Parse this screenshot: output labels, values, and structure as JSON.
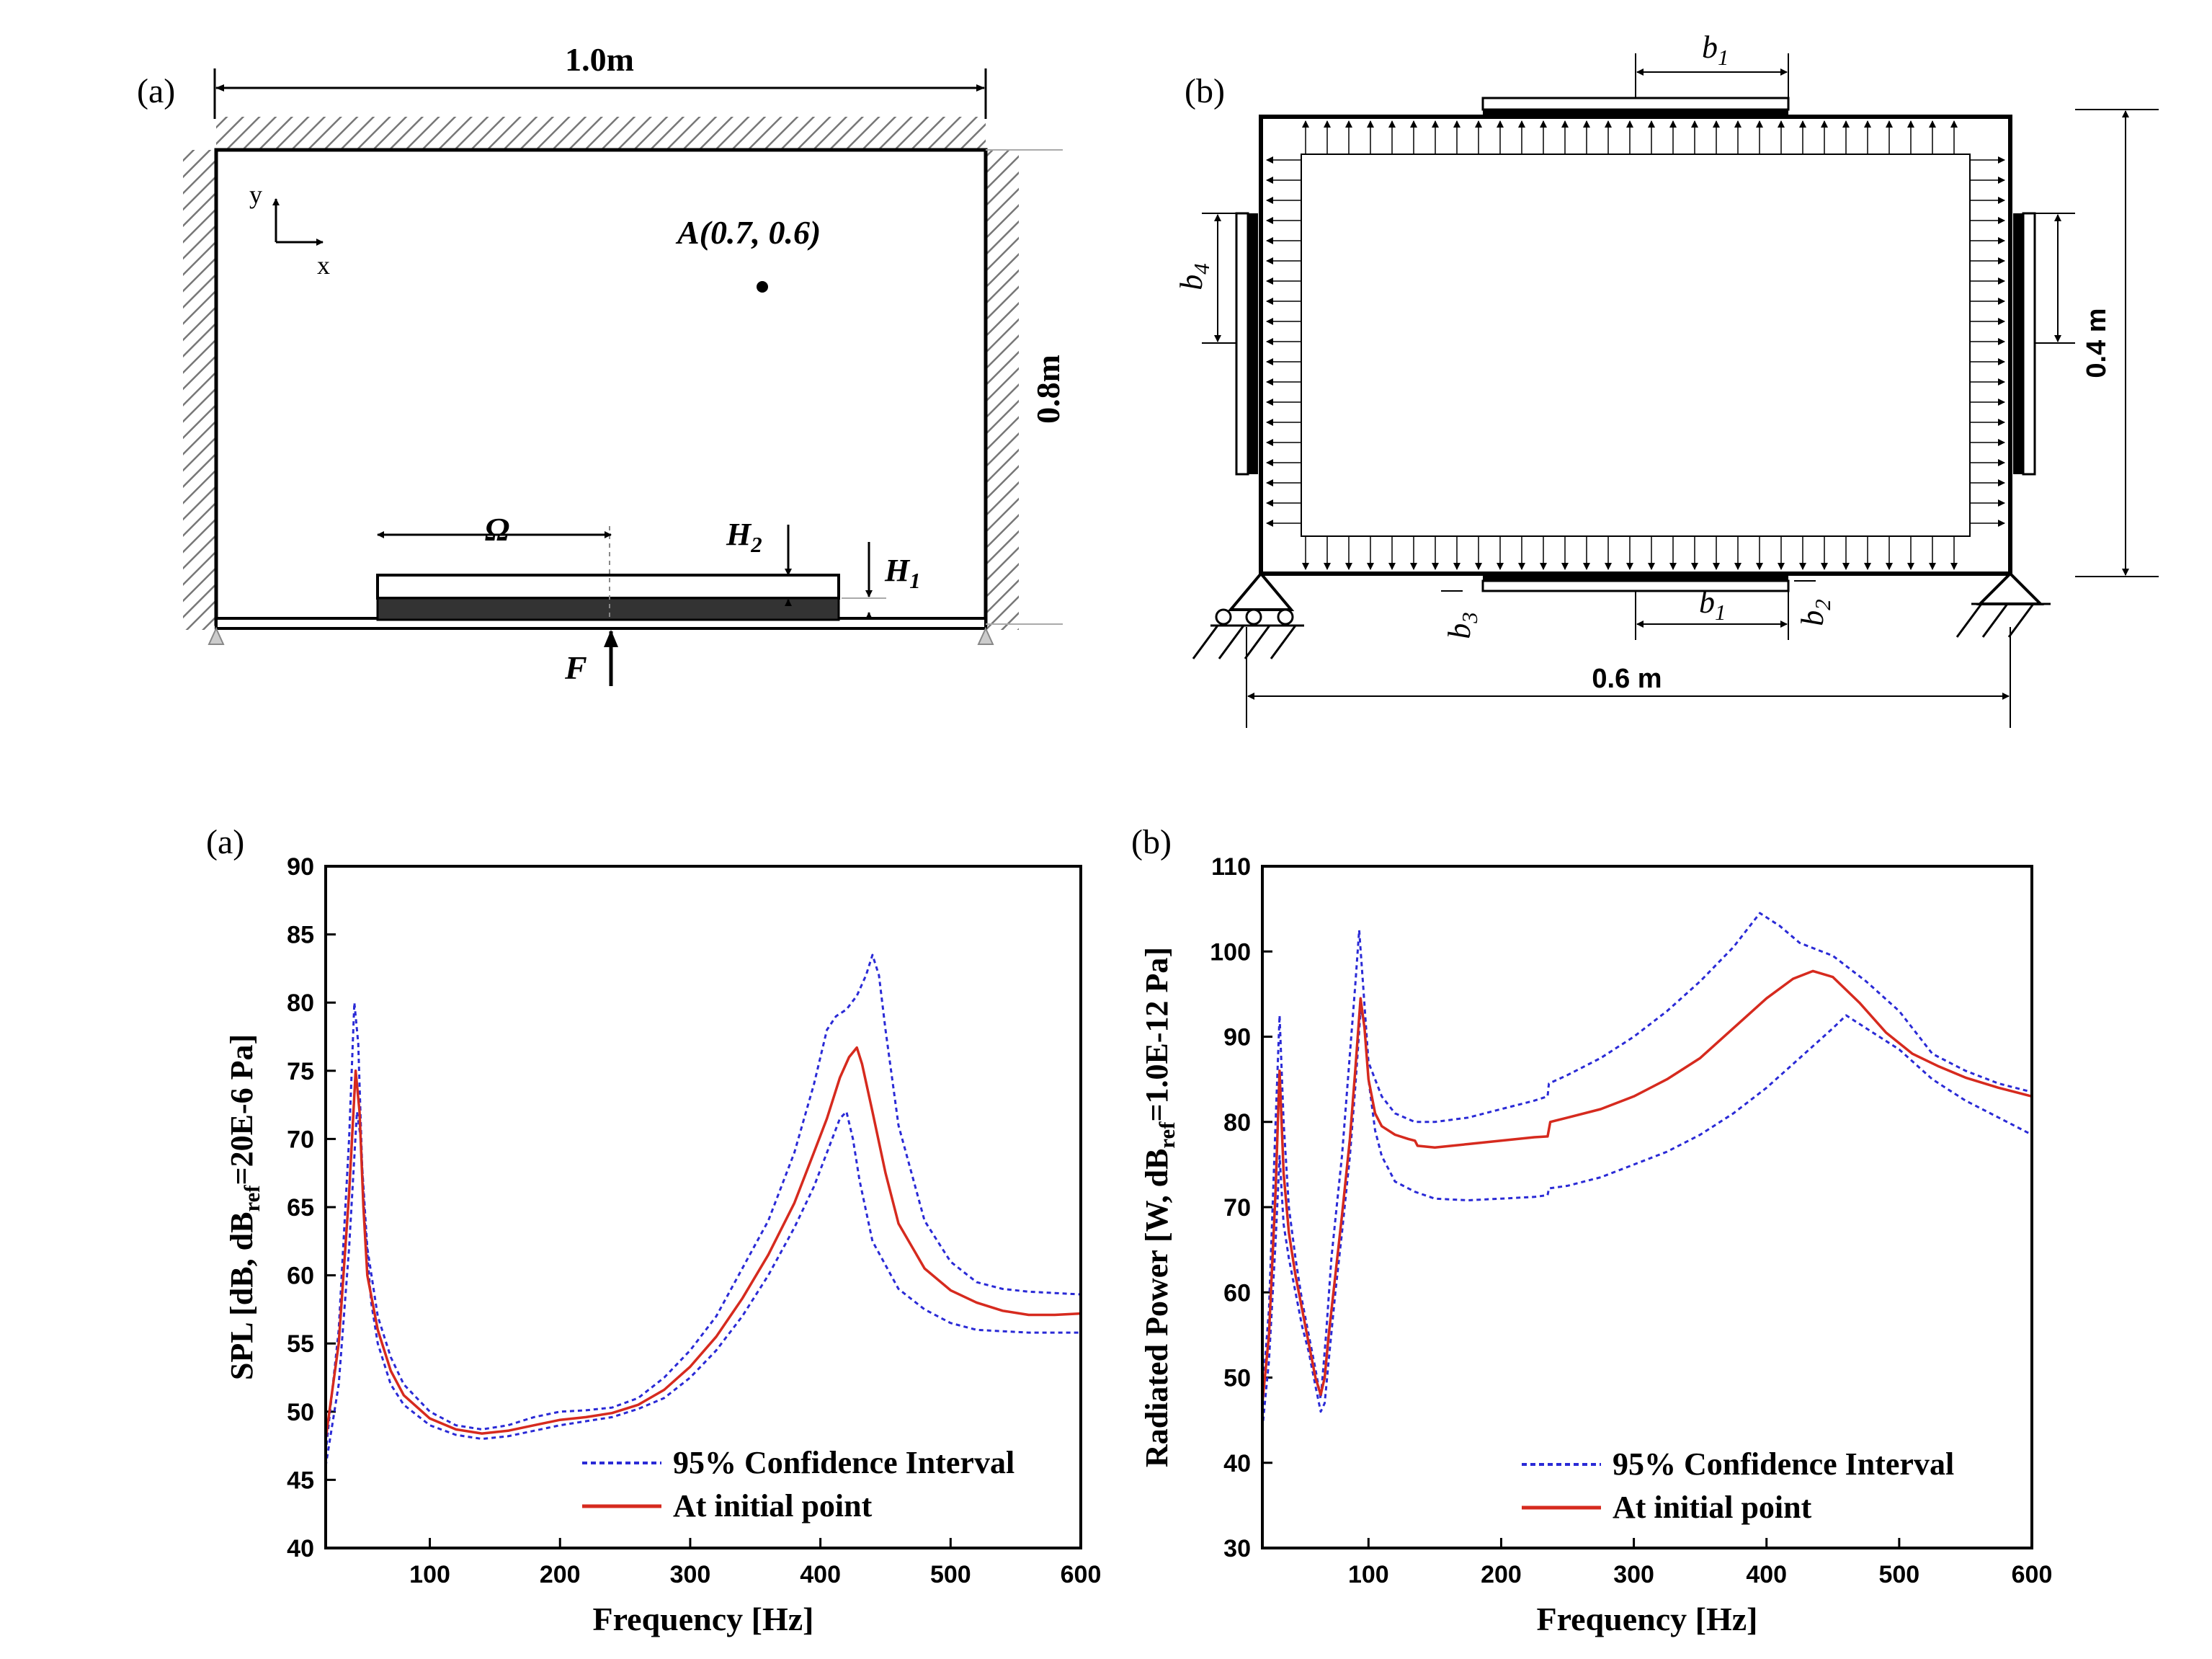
{
  "diagram_a": {
    "panel_label": "(a)",
    "width_label": "1.0m",
    "height_label": "0.8m",
    "axis_y": "y",
    "axis_x": "x",
    "point_label": "A(0.7, 0.6)",
    "omega_label": "Ω",
    "h2_label": "H2",
    "h1_label": "H1",
    "force_label": "F"
  },
  "diagram_b": {
    "panel_label": "(b)",
    "b1_top_label": "b1",
    "b4_label": "b4",
    "b3_label": "b3",
    "b1_bottom_label": "b1",
    "b2_label": "b2",
    "height_label": "0.4 m",
    "width_label": "0.6 m"
  },
  "colors": {
    "confidence": "#2a2ad6",
    "initial": "#d62a1e",
    "axes": "#000000"
  },
  "chart_data": [
    {
      "type": "line",
      "panel_label": "(a)",
      "xlabel": "Frequency [Hz]",
      "ylabel": "SPL [dB, dBref=20E-6 Pa]",
      "xlim": [
        20,
        600
      ],
      "ylim": [
        40,
        90
      ],
      "xticks": [
        100,
        200,
        300,
        400,
        500,
        600
      ],
      "yticks": [
        40,
        45,
        50,
        55,
        60,
        65,
        70,
        75,
        80,
        85,
        90
      ],
      "legend": [
        "95% Confidence Interval",
        "At initial point"
      ],
      "series": [
        {
          "name": "95% Confidence Interval",
          "style": "dotted",
          "x": [
            20,
            30,
            38,
            42,
            45,
            48,
            52,
            60,
            70,
            80,
            100,
            120,
            140,
            160,
            180,
            200,
            220,
            240,
            260,
            280,
            300,
            320,
            340,
            360,
            380,
            395,
            405,
            412,
            420,
            428,
            435,
            440,
            445,
            450,
            460,
            480,
            500,
            520,
            540,
            560,
            580,
            600
          ],
          "y": [
            47,
            56,
            70,
            80,
            77,
            68,
            62,
            57,
            54,
            52,
            50,
            49,
            48.7,
            49,
            49.6,
            50,
            50.1,
            50.3,
            51,
            52.5,
            54.5,
            57,
            60.5,
            64,
            69,
            74,
            78,
            79,
            79.5,
            80.5,
            82,
            83.5,
            82,
            78,
            71,
            64,
            61,
            59.5,
            59,
            58.8,
            58.7,
            58.6
          ]
        },
        {
          "name": "95% Confidence Interval",
          "style": "dotted",
          "x": [
            20,
            30,
            38,
            44,
            47,
            50,
            55,
            60,
            70,
            80,
            100,
            120,
            140,
            160,
            180,
            200,
            220,
            240,
            260,
            280,
            300,
            320,
            340,
            360,
            380,
            395,
            405,
            415,
            420,
            425,
            430,
            440,
            460,
            480,
            500,
            520,
            540,
            560,
            580,
            600
          ],
          "y": [
            46,
            52,
            62,
            72,
            70,
            64,
            58,
            55,
            52,
            50.5,
            49,
            48.3,
            48,
            48.2,
            48.6,
            49,
            49.3,
            49.6,
            50.2,
            51,
            52.5,
            54.5,
            57,
            60,
            63.5,
            66.5,
            69,
            71.5,
            72,
            70,
            67,
            62.5,
            59,
            57.5,
            56.5,
            56,
            55.9,
            55.8,
            55.8,
            55.8
          ]
        },
        {
          "name": "At initial point",
          "style": "solid",
          "x": [
            20,
            30,
            38,
            43,
            46,
            49,
            52,
            60,
            70,
            80,
            100,
            120,
            140,
            160,
            180,
            200,
            220,
            240,
            260,
            280,
            300,
            320,
            340,
            360,
            380,
            395,
            405,
            415,
            422,
            428,
            432,
            440,
            450,
            460,
            480,
            500,
            520,
            540,
            560,
            580,
            600
          ],
          "y": [
            48,
            55,
            66,
            75,
            72,
            65,
            60,
            56,
            53,
            51.2,
            49.5,
            48.7,
            48.4,
            48.6,
            49,
            49.4,
            49.6,
            49.9,
            50.5,
            51.6,
            53.3,
            55.5,
            58.3,
            61.5,
            65.3,
            69,
            71.5,
            74.5,
            76,
            76.7,
            75.5,
            72,
            67.5,
            63.8,
            60.5,
            58.9,
            58,
            57.4,
            57.1,
            57.1,
            57.2
          ]
        }
      ]
    },
    {
      "type": "line",
      "panel_label": "(b)",
      "xlabel": "Frequency [Hz]",
      "ylabel": "Radiated Power [W, dBref=1.0E-12 Pa]",
      "xlim": [
        20,
        600
      ],
      "ylim": [
        30,
        110
      ],
      "xticks": [
        100,
        200,
        300,
        400,
        500,
        600
      ],
      "yticks": [
        30,
        40,
        50,
        60,
        70,
        80,
        90,
        100,
        110
      ],
      "legend": [
        "95% Confidence Interval",
        "At initial point"
      ],
      "series": [
        {
          "name": "95% Confidence Interval",
          "style": "dotted",
          "x": [
            20,
            25,
            30,
            33,
            36,
            40,
            45,
            50,
            55,
            60,
            64,
            68,
            72,
            76,
            80,
            85,
            90,
            93,
            96,
            100,
            110,
            120,
            135,
            150,
            175,
            200,
            225,
            235,
            236,
            250,
            275,
            300,
            325,
            350,
            375,
            395,
            410,
            425,
            450,
            475,
            500,
            525,
            550,
            575,
            600
          ],
          "y": [
            48,
            58,
            80,
            92.5,
            80,
            70,
            64,
            59,
            55,
            51,
            47.5,
            55,
            64,
            70,
            76,
            86,
            96,
            102.5,
            96,
            87,
            83,
            81,
            80,
            80,
            80.5,
            81.5,
            82.5,
            83,
            84.5,
            85.5,
            87.5,
            90,
            93,
            96.5,
            100.5,
            104.5,
            103,
            101,
            99.5,
            96.5,
            93,
            88,
            86,
            84.5,
            83.5
          ]
        },
        {
          "name": "95% Confidence Interval",
          "style": "dotted",
          "x": [
            20,
            25,
            30,
            33,
            36,
            40,
            45,
            50,
            55,
            60,
            64,
            67,
            70,
            75,
            80,
            86,
            90,
            94,
            97,
            100,
            105,
            110,
            120,
            135,
            150,
            175,
            200,
            225,
            235,
            236,
            250,
            275,
            300,
            325,
            350,
            375,
            400,
            425,
            450,
            460,
            480,
            500,
            525,
            550,
            575,
            600
          ],
          "y": [
            44,
            52,
            66,
            76,
            68,
            64,
            60,
            56,
            53,
            49,
            46,
            47,
            52,
            60,
            67,
            76,
            84,
            93,
            92,
            85,
            79,
            76,
            73,
            71.8,
            71,
            70.8,
            71,
            71.2,
            71.4,
            72.2,
            72.5,
            73.5,
            75,
            76.5,
            78.5,
            81,
            84,
            87.5,
            91,
            92.5,
            90.5,
            88.5,
            85,
            82.5,
            80.5,
            78.5
          ]
        },
        {
          "name": "At initial point",
          "style": "solid",
          "x": [
            20,
            25,
            30,
            33,
            36,
            40,
            45,
            50,
            55,
            60,
            64,
            67,
            70,
            75,
            80,
            86,
            90,
            94,
            97,
            100,
            105,
            110,
            120,
            130,
            135,
            137,
            150,
            175,
            200,
            225,
            235,
            237,
            250,
            275,
            300,
            325,
            350,
            375,
            400,
            420,
            435,
            450,
            470,
            490,
            510,
            530,
            550,
            575,
            600
          ],
          "y": [
            47,
            55,
            72,
            86,
            74,
            67,
            62,
            58,
            54,
            50,
            48,
            50,
            55,
            62,
            69,
            78,
            86,
            94.5,
            91,
            85,
            81,
            79.5,
            78.5,
            78,
            77.8,
            77.2,
            77,
            77.4,
            77.8,
            78.2,
            78.3,
            80,
            80.5,
            81.5,
            83,
            85,
            87.5,
            91,
            94.5,
            96.8,
            97.7,
            97,
            94,
            90.5,
            88,
            86.5,
            85.2,
            84,
            83
          ]
        }
      ]
    }
  ]
}
